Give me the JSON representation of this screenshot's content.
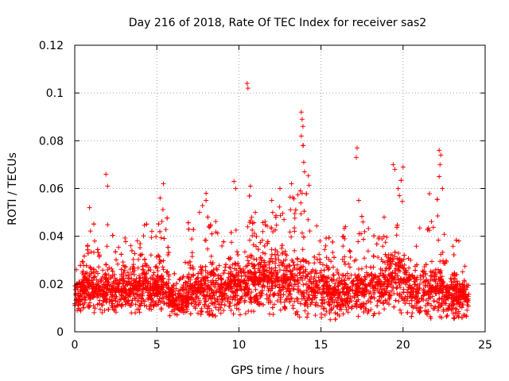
{
  "chart_data": {
    "type": "scatter",
    "title": "Day 216 of 2018, Rate Of TEC Index for receiver sas2",
    "xlabel": "GPS time / hours",
    "ylabel": "ROTI / TECUs",
    "xlim": [
      0,
      25
    ],
    "ylim": [
      0,
      0.12
    ],
    "xticks": [
      0,
      5,
      10,
      15,
      20,
      25
    ],
    "xtick_labels": [
      "0",
      "5",
      "10",
      "15",
      "20",
      "25"
    ],
    "yticks": [
      0,
      0.02,
      0.04,
      0.06,
      0.08,
      0.1,
      0.12
    ],
    "ytick_labels": [
      "0",
      "0.02",
      "0.04",
      "0.06",
      "0.08",
      "0.1",
      "0.12"
    ],
    "grid": true,
    "marker": "+",
    "color": "#ff0000",
    "series": [
      {
        "name": "ROTI",
        "envelope": {
          "x": [
            0,
            0.5,
            1,
            1.5,
            2,
            2.5,
            3,
            3.5,
            4,
            4.5,
            5,
            5.5,
            6,
            6.5,
            7,
            7.5,
            8,
            8.5,
            9,
            9.5,
            10,
            10.5,
            11,
            11.5,
            12,
            12.5,
            13,
            13.5,
            14,
            14.5,
            15,
            15.5,
            16,
            16.5,
            17,
            17.5,
            18,
            18.5,
            19,
            19.5,
            20,
            20.5,
            21,
            21.5,
            22,
            22.5,
            23,
            23.5,
            24
          ],
          "low": [
            0.008,
            0.008,
            0.007,
            0.008,
            0.007,
            0.008,
            0.008,
            0.007,
            0.007,
            0.007,
            0.006,
            0.006,
            0.007,
            0.007,
            0.007,
            0.006,
            0.005,
            0.006,
            0.006,
            0.006,
            0.006,
            0.007,
            0.008,
            0.008,
            0.007,
            0.007,
            0.008,
            0.006,
            0.006,
            0.006,
            0.004,
            0.005,
            0.005,
            0.006,
            0.006,
            0.006,
            0.006,
            0.007,
            0.008,
            0.008,
            0.007,
            0.006,
            0.006,
            0.006,
            0.005,
            0.005,
            0.005,
            0.004,
            0.005
          ],
          "high": [
            0.026,
            0.03,
            0.052,
            0.032,
            0.052,
            0.034,
            0.04,
            0.045,
            0.048,
            0.046,
            0.044,
            0.062,
            0.024,
            0.028,
            0.05,
            0.05,
            0.058,
            0.048,
            0.044,
            0.05,
            0.063,
            0.06,
            0.05,
            0.05,
            0.055,
            0.06,
            0.056,
            0.062,
            0.092,
            0.05,
            0.042,
            0.04,
            0.038,
            0.045,
            0.044,
            0.052,
            0.042,
            0.048,
            0.052,
            0.055,
            0.07,
            0.058,
            0.045,
            0.055,
            0.076,
            0.05,
            0.048,
            0.035,
            0.022
          ],
          "typical": [
            0.015,
            0.017,
            0.018,
            0.017,
            0.018,
            0.016,
            0.017,
            0.018,
            0.018,
            0.017,
            0.017,
            0.018,
            0.013,
            0.013,
            0.016,
            0.017,
            0.018,
            0.017,
            0.018,
            0.019,
            0.019,
            0.02,
            0.021,
            0.022,
            0.021,
            0.021,
            0.022,
            0.021,
            0.02,
            0.017,
            0.016,
            0.016,
            0.016,
            0.016,
            0.016,
            0.017,
            0.018,
            0.019,
            0.021,
            0.022,
            0.021,
            0.018,
            0.017,
            0.016,
            0.017,
            0.016,
            0.015,
            0.014,
            0.013
          ]
        },
        "outliers": [
          {
            "x": 0.1,
            "y": 0.026
          },
          {
            "x": 0.9,
            "y": 0.052
          },
          {
            "x": 1.9,
            "y": 0.066
          },
          {
            "x": 2.0,
            "y": 0.061
          },
          {
            "x": 5.4,
            "y": 0.062
          },
          {
            "x": 5.2,
            "y": 0.056
          },
          {
            "x": 7.6,
            "y": 0.05
          },
          {
            "x": 8.0,
            "y": 0.058
          },
          {
            "x": 9.7,
            "y": 0.063
          },
          {
            "x": 9.8,
            "y": 0.06
          },
          {
            "x": 10.5,
            "y": 0.104
          },
          {
            "x": 10.55,
            "y": 0.102
          },
          {
            "x": 10.7,
            "y": 0.061
          },
          {
            "x": 11.0,
            "y": 0.05
          },
          {
            "x": 12.0,
            "y": 0.055
          },
          {
            "x": 12.5,
            "y": 0.06
          },
          {
            "x": 13.2,
            "y": 0.062
          },
          {
            "x": 13.8,
            "y": 0.092
          },
          {
            "x": 13.85,
            "y": 0.089
          },
          {
            "x": 13.9,
            "y": 0.086
          },
          {
            "x": 13.8,
            "y": 0.082
          },
          {
            "x": 13.9,
            "y": 0.078
          },
          {
            "x": 13.95,
            "y": 0.071
          },
          {
            "x": 14.0,
            "y": 0.067
          },
          {
            "x": 13.85,
            "y": 0.058
          },
          {
            "x": 17.2,
            "y": 0.077
          },
          {
            "x": 17.15,
            "y": 0.073
          },
          {
            "x": 17.3,
            "y": 0.055
          },
          {
            "x": 19.4,
            "y": 0.07
          },
          {
            "x": 19.5,
            "y": 0.068
          },
          {
            "x": 20.0,
            "y": 0.069
          },
          {
            "x": 19.7,
            "y": 0.06
          },
          {
            "x": 22.2,
            "y": 0.076
          },
          {
            "x": 22.3,
            "y": 0.074
          },
          {
            "x": 22.25,
            "y": 0.07
          },
          {
            "x": 22.2,
            "y": 0.065
          },
          {
            "x": 22.4,
            "y": 0.06
          },
          {
            "x": 23.4,
            "y": 0.038
          }
        ]
      }
    ]
  }
}
